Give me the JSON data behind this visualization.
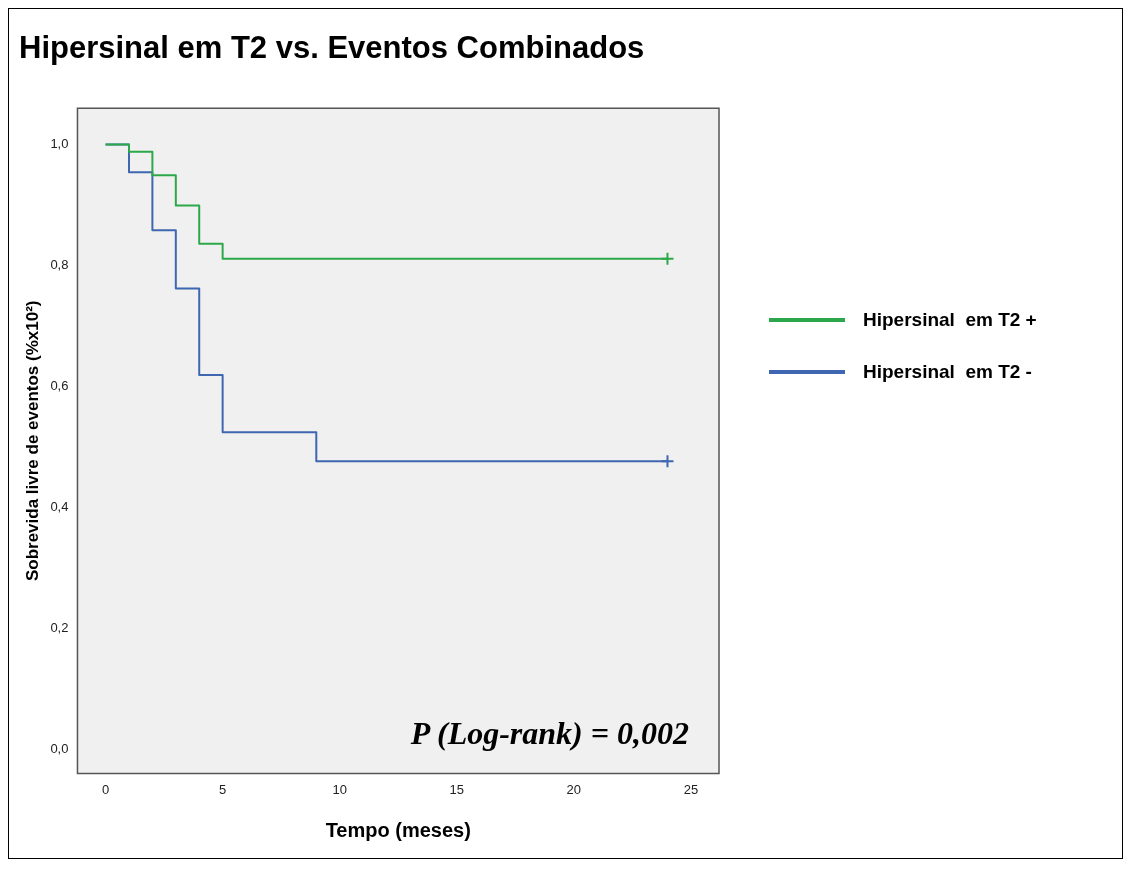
{
  "chart_data": {
    "type": "step",
    "title": "Hipersinal em T2 vs. Eventos Combinados",
    "xlabel": "Tempo (meses)",
    "ylabel": "Sobrevida livre de eventos (%x10²)",
    "xlim": [
      -1.2,
      26.2
    ],
    "xticks": [
      0,
      5,
      10,
      15,
      20,
      25
    ],
    "ylim": [
      -0.04,
      1.06
    ],
    "yticks": [
      {
        "value": 0,
        "label": "0,0"
      },
      {
        "value": 0.2,
        "label": "0,2"
      },
      {
        "value": 0.4,
        "label": "0,4"
      },
      {
        "value": 0.6,
        "label": "0,6"
      },
      {
        "value": 0.8,
        "label": "0,8"
      },
      {
        "value": 1,
        "label": "1,0"
      }
    ],
    "grid": false,
    "legend": "right",
    "marker": "none",
    "line_style": "solid",
    "series": [
      {
        "name": "Hipersinal  em T2 +",
        "color": "#2ca84a",
        "x": [
          0,
          1,
          2,
          3,
          4,
          5,
          24
        ],
        "values": [
          1,
          0.988,
          0.949,
          0.899,
          0.836,
          0.811,
          0.811
        ]
      },
      {
        "name": "Hipersinal  em T2 -",
        "color": "#3f66b0",
        "x": [
          0,
          1,
          2,
          3,
          4,
          5,
          9,
          24
        ],
        "values": [
          1,
          0.954,
          0.858,
          0.762,
          0.619,
          0.524,
          0.476,
          0.476
        ]
      },
      {
        "type": "scatter",
        "marker": "cross",
        "color": "#2ca84a",
        "x": [
          24
        ],
        "values": [
          0.811
        ]
      },
      {
        "type": "scatter",
        "marker": "cross",
        "color": "#3f66b0",
        "x": [
          24
        ],
        "values": [
          0.476
        ]
      }
    ],
    "annotations": [
      "P (Log-rank) = 0,002"
    ]
  }
}
